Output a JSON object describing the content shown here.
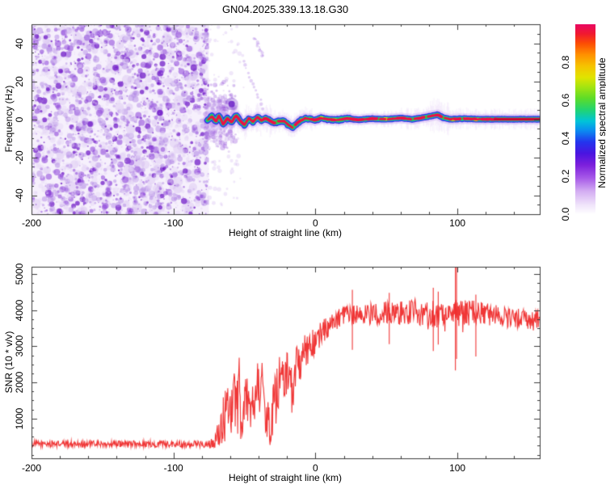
{
  "title": "GN04.2025.339.13.18.G30",
  "colors": {
    "axis": "#3c3c3c",
    "snr_line": "#ef2c2c",
    "noise_palette": [
      "#e4d4f6",
      "#b287e6",
      "#8b40d8",
      "#6a10c4"
    ],
    "fuzz": "#b78ae8",
    "streak": "#9a5fe0",
    "blob": "#5c0ac2"
  },
  "colorbar": {
    "label": "Normalized spectral amplitude",
    "tick_labels": [
      "0.0",
      "0.2",
      "0.4",
      "0.6",
      "0.8"
    ],
    "tick_values": [
      0.0,
      0.2,
      0.4,
      0.6,
      0.8
    ],
    "range": [
      0,
      1
    ],
    "gradient_stops": [
      [
        0.0,
        "#ffffff"
      ],
      [
        0.05,
        "#efe3fa"
      ],
      [
        0.12,
        "#d4aef2"
      ],
      [
        0.19,
        "#a75ae8"
      ],
      [
        0.26,
        "#7c1fdc"
      ],
      [
        0.32,
        "#4a14e0"
      ],
      [
        0.38,
        "#2335ee"
      ],
      [
        0.44,
        "#0b8cf0"
      ],
      [
        0.49,
        "#00c4d8"
      ],
      [
        0.55,
        "#22d470"
      ],
      [
        0.61,
        "#5ddc28"
      ],
      [
        0.67,
        "#a5e410"
      ],
      [
        0.72,
        "#e0e400"
      ],
      [
        0.78,
        "#f6c300"
      ],
      [
        0.84,
        "#ff9000"
      ],
      [
        0.9,
        "#fc4c04"
      ],
      [
        0.95,
        "#f01830"
      ],
      [
        1.0,
        "#e90863"
      ]
    ]
  },
  "chart_data": [
    {
      "type": "heatmap",
      "title": "GN04.2025.339.13.18.G30",
      "xlabel": "Height of straight line (km)",
      "ylabel": "Frequency (Hz)",
      "xlim": [
        -200,
        158
      ],
      "ylim": [
        -50,
        50
      ],
      "x_major_ticks": [
        -200,
        -100,
        0,
        100
      ],
      "x_tick_labels": [
        "-200",
        "-100",
        "0",
        "100"
      ],
      "x_minor_step": 20,
      "y_major_ticks": [
        40,
        20,
        0,
        -20,
        -40
      ],
      "y_tick_labels": [
        "40",
        "20",
        "0",
        "-20",
        "-40"
      ],
      "y_minor_step": 5,
      "grid": false,
      "legend": "colorbar right, Normalized spectral amplitude 0.0-1.0",
      "noise_region": {
        "x_range": [
          -200,
          -75
        ],
        "freq_range": [
          -50,
          50
        ],
        "density": 3000,
        "large_blobs": 140,
        "seed": 7
      },
      "echo_band": {
        "x_start": -76,
        "x_end": 158,
        "center_freq_hz": 0,
        "centerline": [
          [
            -76,
            -0.5
          ],
          [
            -73,
            1.5
          ],
          [
            -70,
            -1.2
          ],
          [
            -68,
            2.0
          ],
          [
            -65,
            -2.6
          ],
          [
            -62,
            0.5
          ],
          [
            -59,
            -1.6
          ],
          [
            -56,
            2.0
          ],
          [
            -53,
            -0.8
          ],
          [
            -50,
            -3.0
          ],
          [
            -47,
            0.6
          ],
          [
            -44,
            -1.4
          ],
          [
            -41,
            1.2
          ],
          [
            -38,
            -0.6
          ],
          [
            -35,
            0.6
          ],
          [
            -32,
            -0.8
          ],
          [
            -29,
            -2.0
          ],
          [
            -26,
            -1.0
          ],
          [
            -22,
            -1.0
          ],
          [
            -19,
            -3.0
          ],
          [
            -16,
            -4.6
          ],
          [
            -13,
            -2.0
          ],
          [
            -10,
            -0.6
          ],
          [
            -7,
            0.6
          ],
          [
            -4,
            0.0
          ],
          [
            0,
            -0.4
          ],
          [
            4,
            0.6
          ],
          [
            8,
            0.0
          ],
          [
            15,
            -0.5
          ],
          [
            22,
            0.4
          ],
          [
            30,
            -0.3
          ],
          [
            40,
            0.3
          ],
          [
            50,
            0.0
          ],
          [
            60,
            0.6
          ],
          [
            68,
            0.0
          ],
          [
            75,
            0.8
          ],
          [
            82,
            1.8
          ],
          [
            86,
            2.4
          ],
          [
            90,
            0.8
          ],
          [
            95,
            0.0
          ],
          [
            105,
            0.3
          ],
          [
            115,
            0.0
          ],
          [
            130,
            0.0
          ],
          [
            158,
            0.0
          ]
        ],
        "layer_colors": {
          "halo": "#c9a6f1",
          "outer": "#2b1ae0",
          "mid": "#00b8e8",
          "inner": "#2bd244",
          "accent": "#e0e400",
          "core": "#ef0d49",
          "core_dark": "#a3041c"
        },
        "seed": 21
      },
      "features": {
        "streaks": [
          {
            "from": [
              -51,
              30
            ],
            "to": [
              -37,
              6
            ]
          },
          {
            "from": [
              -43,
              43
            ],
            "to": [
              -37,
              33
            ]
          }
        ],
        "blob": {
          "pos": [
            -59,
            8
          ],
          "r": 4
        }
      }
    },
    {
      "type": "line",
      "xlabel": "Height of straight line (km)",
      "ylabel": "SNR (10 * v/v)",
      "xlim": [
        -200,
        158
      ],
      "ylim": [
        -100,
        5200
      ],
      "x_major_ticks": [
        -200,
        -100,
        0,
        100
      ],
      "x_tick_labels": [
        "-200",
        "-100",
        "0",
        "100"
      ],
      "x_minor_step": 20,
      "y_major_ticks": [
        1000,
        2000,
        3000,
        4000,
        5000
      ],
      "y_tick_labels": [
        "1000",
        "2000",
        "3000",
        "4000",
        "5000"
      ],
      "y_minor_step": 250,
      "grid": false,
      "seed": 1234,
      "series": [
        {
          "name": "SNR",
          "envelope": [
            [
              -200,
              300,
              90
            ],
            [
              -120,
              300,
              90
            ],
            [
              -80,
              300,
              100
            ],
            [
              -72,
              320,
              130
            ],
            [
              -69,
              500,
              350
            ],
            [
              -66,
              700,
              550
            ],
            [
              -63,
              1300,
              900
            ],
            [
              -60,
              1000,
              750
            ],
            [
              -57,
              1600,
              800
            ],
            [
              -54,
              1400,
              900
            ],
            [
              -51,
              1000,
              650
            ],
            [
              -48,
              1700,
              800
            ],
            [
              -46,
              900,
              550
            ],
            [
              -44,
              1500,
              700
            ],
            [
              -41,
              2000,
              750
            ],
            [
              -38,
              1900,
              850
            ],
            [
              -35,
              1200,
              800
            ],
            [
              -32,
              700,
              450
            ],
            [
              -29,
              1300,
              850
            ],
            [
              -26,
              2000,
              700
            ],
            [
              -23,
              2100,
              650
            ],
            [
              -20,
              2300,
              650
            ],
            [
              -17,
              1700,
              750
            ],
            [
              -14,
              2400,
              600
            ],
            [
              -11,
              2600,
              550
            ],
            [
              -8,
              2800,
              500
            ],
            [
              -5,
              2950,
              450
            ],
            [
              -2,
              3050,
              420
            ],
            [
              1,
              3200,
              400
            ],
            [
              4,
              3350,
              360
            ],
            [
              8,
              3500,
              330
            ],
            [
              12,
              3650,
              300
            ],
            [
              16,
              3750,
              290
            ],
            [
              22,
              3820,
              290
            ],
            [
              30,
              3900,
              290
            ],
            [
              38,
              3880,
              300
            ],
            [
              46,
              3900,
              320
            ],
            [
              54,
              3950,
              330
            ],
            [
              62,
              3900,
              360
            ],
            [
              68,
              3960,
              400
            ],
            [
              74,
              3900,
              360
            ],
            [
              80,
              3850,
              400
            ],
            [
              86,
              3900,
              380
            ],
            [
              92,
              3850,
              340
            ],
            [
              98,
              3950,
              450
            ],
            [
              103,
              3900,
              380
            ],
            [
              110,
              3950,
              330
            ],
            [
              118,
              3900,
              310
            ],
            [
              126,
              3850,
              300
            ],
            [
              134,
              3800,
              290
            ],
            [
              142,
              3760,
              290
            ],
            [
              150,
              3720,
              290
            ],
            [
              158,
              3700,
              300
            ]
          ],
          "spikes": [
            [
              26,
              2900,
              4560
            ],
            [
              52,
              3060,
              4480
            ],
            [
              83,
              2870,
              4620
            ],
            [
              86.5,
              3050,
              4510
            ],
            [
              98.6,
              2330,
              5340
            ],
            [
              99.4,
              2650,
              5200
            ],
            [
              113,
              2720,
              4430
            ]
          ]
        }
      ]
    }
  ]
}
